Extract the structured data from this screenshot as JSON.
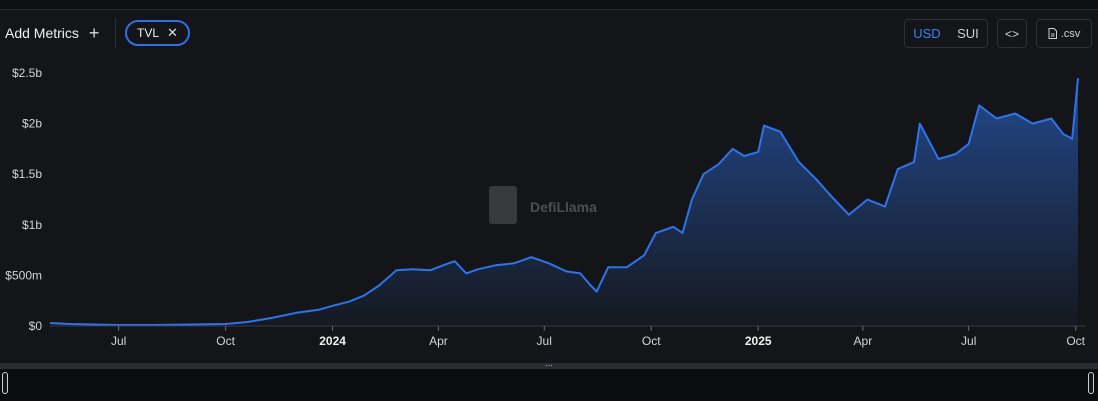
{
  "toolbar": {
    "add_metrics_label": "Add Metrics",
    "add_icon": "plus-icon",
    "chip_label": "TVL",
    "chip_close_icon": "close-icon",
    "currency_options": [
      "USD",
      "SUI"
    ],
    "currency_selected": "USD",
    "embed_icon": "code-icon",
    "csv_label": ".csv",
    "csv_icon": "file-icon"
  },
  "watermark": "DefiLlama",
  "colors": {
    "line": "#2f73ea",
    "accent": "#3b82f6",
    "background": "#141518"
  },
  "chart_data": {
    "type": "area",
    "series": [
      {
        "name": "TVL"
      }
    ],
    "y_ticks": [
      "$0",
      "$500m",
      "$1b",
      "$1.5b",
      "$2b",
      "$2.5b"
    ],
    "ylim": [
      0,
      2500000000
    ],
    "x_ticks": [
      "Jul",
      "Oct",
      "2024",
      "Apr",
      "Jul",
      "Oct",
      "2025",
      "Apr",
      "Jul",
      "Oct"
    ],
    "x_tick_dates": [
      "2023-07-01",
      "2023-10-01",
      "2024-01-01",
      "2024-04-01",
      "2024-07-01",
      "2024-10-01",
      "2025-01-01",
      "2025-04-01",
      "2025-07-01",
      "2025-10-01"
    ],
    "year_ticks": [
      "2024",
      "2025"
    ],
    "points": [
      [
        "2023-05-03",
        0.03
      ],
      [
        "2023-05-20",
        0.02
      ],
      [
        "2023-06-10",
        0.015
      ],
      [
        "2023-07-01",
        0.01
      ],
      [
        "2023-08-01",
        0.01
      ],
      [
        "2023-09-01",
        0.015
      ],
      [
        "2023-10-01",
        0.02
      ],
      [
        "2023-10-20",
        0.04
      ],
      [
        "2023-11-10",
        0.08
      ],
      [
        "2023-12-01",
        0.13
      ],
      [
        "2023-12-20",
        0.16
      ],
      [
        "2024-01-01",
        0.2
      ],
      [
        "2024-01-15",
        0.24
      ],
      [
        "2024-01-28",
        0.3
      ],
      [
        "2024-02-10",
        0.4
      ],
      [
        "2024-02-25",
        0.55
      ],
      [
        "2024-03-10",
        0.56
      ],
      [
        "2024-03-25",
        0.55
      ],
      [
        "2024-04-05",
        0.6
      ],
      [
        "2024-04-15",
        0.64
      ],
      [
        "2024-04-25",
        0.52
      ],
      [
        "2024-05-05",
        0.56
      ],
      [
        "2024-05-20",
        0.6
      ],
      [
        "2024-06-05",
        0.62
      ],
      [
        "2024-06-20",
        0.68
      ],
      [
        "2024-07-05",
        0.62
      ],
      [
        "2024-07-20",
        0.54
      ],
      [
        "2024-08-01",
        0.52
      ],
      [
        "2024-08-10",
        0.4
      ],
      [
        "2024-08-15",
        0.34
      ],
      [
        "2024-08-25",
        0.58
      ],
      [
        "2024-09-10",
        0.58
      ],
      [
        "2024-09-25",
        0.7
      ],
      [
        "2024-10-05",
        0.92
      ],
      [
        "2024-10-20",
        0.98
      ],
      [
        "2024-10-28",
        0.92
      ],
      [
        "2024-11-05",
        1.25
      ],
      [
        "2024-11-15",
        1.5
      ],
      [
        "2024-11-28",
        1.6
      ],
      [
        "2024-12-10",
        1.75
      ],
      [
        "2024-12-20",
        1.68
      ],
      [
        "2025-01-01",
        1.72
      ],
      [
        "2025-01-06",
        1.98
      ],
      [
        "2025-01-20",
        1.92
      ],
      [
        "2025-02-05",
        1.62
      ],
      [
        "2025-02-20",
        1.45
      ],
      [
        "2025-03-05",
        1.28
      ],
      [
        "2025-03-20",
        1.1
      ],
      [
        "2025-04-05",
        1.25
      ],
      [
        "2025-04-20",
        1.18
      ],
      [
        "2025-05-01",
        1.55
      ],
      [
        "2025-05-15",
        1.62
      ],
      [
        "2025-05-20",
        2.0
      ],
      [
        "2025-06-05",
        1.65
      ],
      [
        "2025-06-20",
        1.7
      ],
      [
        "2025-07-01",
        1.8
      ],
      [
        "2025-07-10",
        2.18
      ],
      [
        "2025-07-25",
        2.05
      ],
      [
        "2025-08-10",
        2.1
      ],
      [
        "2025-08-25",
        2.0
      ],
      [
        "2025-09-10",
        2.05
      ],
      [
        "2025-09-20",
        1.9
      ],
      [
        "2025-09-28",
        1.85
      ],
      [
        "2025-10-03",
        2.45
      ]
    ]
  }
}
